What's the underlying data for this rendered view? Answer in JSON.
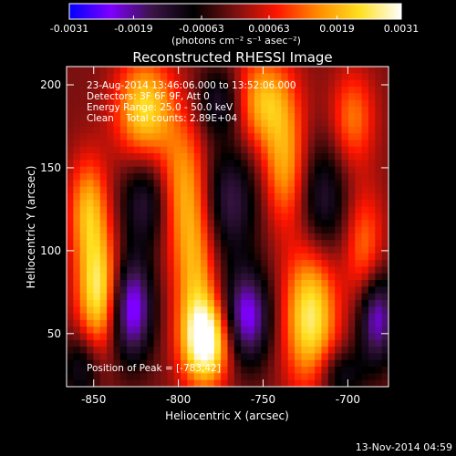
{
  "chart_data": {
    "type": "heatmap",
    "title": "Reconstructed RHESSI Image",
    "xlabel": "Heliocentric X (arcsec)",
    "ylabel": "Heliocentric Y (arcsec)",
    "xlim": [
      -866,
      -676
    ],
    "ylim": [
      18,
      211
    ],
    "x_ticks": [
      -850,
      -800,
      -750,
      -700
    ],
    "y_ticks": [
      50,
      100,
      150,
      200
    ],
    "colorbar": {
      "min": -0.0031,
      "max": 0.0031,
      "tick_values": [
        -0.0031,
        -0.0019,
        -0.00063,
        0.00063,
        0.0019,
        0.0031
      ],
      "tick_labels": [
        "-0.0031",
        "-0.0019",
        "-0.00063",
        "0.00063",
        "0.0019",
        "0.0031"
      ],
      "unit_label": "(photons cm⁻² s⁻¹ asec⁻²)",
      "colormap": [
        "#0000ff",
        "#7f00ff",
        "#3a1446",
        "#000000",
        "#7a1010",
        "#ff1500",
        "#ff8c00",
        "#ffe020",
        "#ffffff"
      ]
    },
    "annotations": [
      "23-Aug-2014 13:46:06.000 to 13:52:06.000",
      "Detectors: 3F 6F 9F, Att 0",
      "Energy Range: 25.0 - 50.0 keV",
      "Clean    Total counts: 2.89E+04"
    ],
    "peak_label": "Position of Peak = [-783,42]",
    "peak": {
      "x": -783,
      "y": 42
    },
    "grid": false,
    "features": [
      {
        "kind": "positive",
        "x": -783,
        "y": 45,
        "sx": 10,
        "sy": 18,
        "a": 1.0
      },
      {
        "kind": "positive",
        "x": -790,
        "y": 85,
        "sx": 9,
        "sy": 35,
        "a": 0.55
      },
      {
        "kind": "positive",
        "x": -797,
        "y": 140,
        "sx": 10,
        "sy": 30,
        "a": 0.5
      },
      {
        "kind": "positive",
        "x": -820,
        "y": 185,
        "sx": 12,
        "sy": 22,
        "a": 0.75
      },
      {
        "kind": "positive",
        "x": -847,
        "y": 75,
        "sx": 9,
        "sy": 25,
        "a": 0.85
      },
      {
        "kind": "positive",
        "x": -853,
        "y": 125,
        "sx": 8,
        "sy": 22,
        "a": 0.6
      },
      {
        "kind": "positive",
        "x": -750,
        "y": 190,
        "sx": 13,
        "sy": 20,
        "a": 0.65
      },
      {
        "kind": "positive",
        "x": -737,
        "y": 150,
        "sx": 9,
        "sy": 25,
        "a": 0.55
      },
      {
        "kind": "positive",
        "x": -722,
        "y": 60,
        "sx": 11,
        "sy": 30,
        "a": 0.85
      },
      {
        "kind": "positive",
        "x": -690,
        "y": 100,
        "sx": 8,
        "sy": 25,
        "a": 0.45
      },
      {
        "kind": "positive",
        "x": -697,
        "y": 180,
        "sx": 9,
        "sy": 20,
        "a": 0.45
      },
      {
        "kind": "negative",
        "x": -828,
        "y": 65,
        "sx": 9,
        "sy": 22,
        "a": 0.85
      },
      {
        "kind": "negative",
        "x": -760,
        "y": 60,
        "sx": 10,
        "sy": 20,
        "a": 0.8
      },
      {
        "kind": "negative",
        "x": -683,
        "y": 60,
        "sx": 8,
        "sy": 20,
        "a": 0.75
      },
      {
        "kind": "negative",
        "x": -770,
        "y": 130,
        "sx": 12,
        "sy": 25,
        "a": 0.5
      },
      {
        "kind": "negative",
        "x": -775,
        "y": 190,
        "sx": 10,
        "sy": 15,
        "a": 0.45
      },
      {
        "kind": "negative",
        "x": -820,
        "y": 130,
        "sx": 10,
        "sy": 20,
        "a": 0.45
      },
      {
        "kind": "negative",
        "x": -715,
        "y": 130,
        "sx": 10,
        "sy": 25,
        "a": 0.45
      },
      {
        "kind": "negative",
        "x": -857,
        "y": 30,
        "sx": 8,
        "sy": 15,
        "a": 0.4
      },
      {
        "kind": "negative",
        "x": -705,
        "y": 25,
        "sx": 10,
        "sy": 12,
        "a": 0.4
      }
    ]
  },
  "footer": {
    "timestamp": "13-Nov-2014 04:59"
  }
}
